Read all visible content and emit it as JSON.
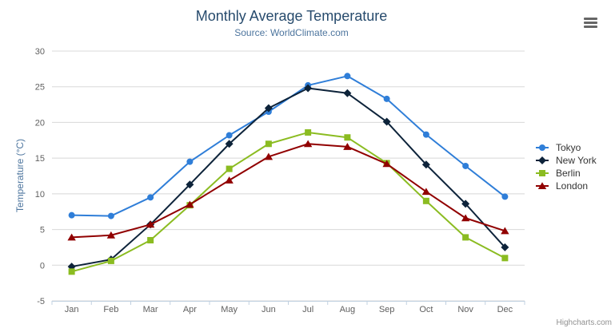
{
  "chart_data": {
    "type": "line",
    "title": "Monthly Average Temperature",
    "subtitle": "Source: WorldClimate.com",
    "xlabel": "",
    "ylabel": "Temperature (°C)",
    "categories": [
      "Jan",
      "Feb",
      "Mar",
      "Apr",
      "May",
      "Jun",
      "Jul",
      "Aug",
      "Sep",
      "Oct",
      "Nov",
      "Dec"
    ],
    "ylim": [
      -5,
      30
    ],
    "yticks": [
      -5,
      0,
      5,
      10,
      15,
      20,
      25,
      30
    ],
    "grid": true,
    "legend_position": "right",
    "series": [
      {
        "name": "Tokyo",
        "marker": "circle",
        "color": "#2f7ed8",
        "values": [
          7.0,
          6.9,
          9.5,
          14.5,
          18.2,
          21.5,
          25.2,
          26.5,
          23.3,
          18.3,
          13.9,
          9.6
        ]
      },
      {
        "name": "New York",
        "marker": "diamond",
        "color": "#0d233a",
        "values": [
          -0.2,
          0.8,
          5.7,
          11.3,
          17.0,
          22.0,
          24.8,
          24.1,
          20.1,
          14.1,
          8.6,
          2.5
        ]
      },
      {
        "name": "Berlin",
        "marker": "square",
        "color": "#8bbc21",
        "values": [
          -0.9,
          0.6,
          3.5,
          8.4,
          13.5,
          17.0,
          18.6,
          17.9,
          14.3,
          9.0,
          3.9,
          1.0
        ]
      },
      {
        "name": "London",
        "marker": "triangle",
        "color": "#910000",
        "values": [
          3.9,
          4.2,
          5.7,
          8.5,
          11.9,
          15.2,
          17.0,
          16.6,
          14.2,
          10.3,
          6.6,
          4.8
        ]
      }
    ]
  },
  "ui": {
    "credits": "Highcharts.com",
    "icons": {
      "context_menu": "hamburger-icon"
    },
    "colors": {
      "title": "#274b6d",
      "subtitle": "#4d759e",
      "axis_title": "#4d759e",
      "axis_labels": "#606060",
      "grid_line": "#d8d8d8",
      "axis_line": "#c0d0e0",
      "tick_mark": "#c0d0e0",
      "legend_text": "#333333",
      "credits_text": "#909090",
      "menu_icon": "#666666",
      "background": "#ffffff"
    }
  }
}
